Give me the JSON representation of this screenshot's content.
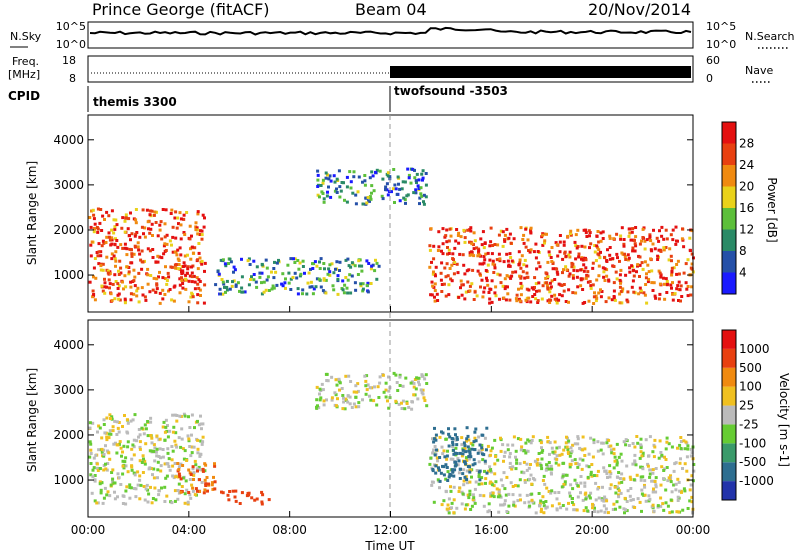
{
  "header": {
    "site": "Prince George (fitACF)",
    "beam": "Beam 04",
    "date": "20/Nov/2014"
  },
  "noise_panel": {
    "left_label": "N.Sky",
    "right_label": "N.Search",
    "yticks_left": [
      "10^5",
      "10^0"
    ],
    "yticks_right": [
      "10^5",
      "10^0"
    ]
  },
  "freq_panel": {
    "left_label_1": "Freq.",
    "left_label_2": "[MHz]",
    "right_label": "Nave",
    "yticks_left": [
      "18",
      "8"
    ],
    "yticks_right": [
      "60",
      "0"
    ]
  },
  "cpid": {
    "label": "CPID",
    "segments": [
      {
        "name": "themis 3300",
        "start_hour": 0,
        "end_hour": 12
      },
      {
        "name": "twofsound -3503",
        "start_hour": 12,
        "end_hour": 24
      }
    ]
  },
  "colors": {
    "power_scale": [
      "#1a1aff",
      "#2550a8",
      "#2a8a66",
      "#5cbf3a",
      "#e9d21a",
      "#f08a10",
      "#e84010",
      "#e41010"
    ],
    "velocity_scale": [
      "#2233aa",
      "#2e6e90",
      "#3a9a6a",
      "#66cc33",
      "#bbbbbb",
      "#f0c020",
      "#f08a10",
      "#e84010",
      "#e41010"
    ]
  },
  "chart_data": [
    {
      "type": "heatmap",
      "title": "Power",
      "xlabel": "",
      "ylabel": "Slant Range [km]",
      "x_range_hours": [
        0,
        24
      ],
      "ylim": [
        180,
        4550
      ],
      "yticks": [
        "4000",
        "3000",
        "2000",
        "1000"
      ],
      "colorbar": {
        "label": "Power [dB]",
        "ticks": [
          "28",
          "24",
          "20",
          "16",
          "12",
          "8",
          "4"
        ],
        "range": [
          0,
          32
        ]
      },
      "regions": [
        {
          "name": "early-band",
          "start_hour": 0.0,
          "end_hour": 4.6,
          "range_start_km": 400,
          "range_end_km": 2500,
          "power_db": 26
        },
        {
          "name": "patch-04",
          "start_hour": 3.6,
          "end_hour": 4.3,
          "range_start_km": 800,
          "range_end_km": 1400,
          "power_db": 28
        },
        {
          "name": "mid-scatter",
          "start_hour": 5.0,
          "end_hour": 11.5,
          "range_start_km": 600,
          "range_end_km": 1400,
          "power_db": 10
        },
        {
          "name": "high-arc",
          "start_hour": 9.0,
          "end_hour": 13.4,
          "range_start_km": 2600,
          "range_end_km": 3400,
          "power_db": 9
        },
        {
          "name": "late-band",
          "start_hour": 13.5,
          "end_hour": 24.0,
          "range_start_km": 400,
          "range_end_km": 2100,
          "power_db": 27
        }
      ]
    },
    {
      "type": "heatmap",
      "title": "Velocity",
      "xlabel": "Time UT",
      "ylabel": "Slant Range [km]",
      "x_range_hours": [
        0,
        24
      ],
      "xticks": [
        "00:00",
        "04:00",
        "08:00",
        "12:00",
        "16:00",
        "20:00",
        "00:00"
      ],
      "ylim": [
        180,
        4550
      ],
      "yticks": [
        "4000",
        "3000",
        "2000",
        "1000"
      ],
      "colorbar": {
        "label": "Velocity [m s-1]",
        "ticks": [
          "1000",
          "500",
          "100",
          "25",
          "-25",
          "-100",
          "-500",
          "-1000"
        ],
        "range": [
          -1000,
          1000
        ]
      },
      "regions": [
        {
          "name": "early-band",
          "start_hour": 0.0,
          "end_hour": 4.6,
          "range_start_km": 500,
          "range_end_km": 2500,
          "velocity_ms": 0
        },
        {
          "name": "patch-04",
          "start_hour": 3.5,
          "end_hour": 5.0,
          "range_start_km": 700,
          "range_end_km": 1400,
          "velocity_ms": -300
        },
        {
          "name": "patch-07",
          "start_hour": 5.2,
          "end_hour": 7.2,
          "range_start_km": 500,
          "range_end_km": 800,
          "velocity_ms": -400
        },
        {
          "name": "high-arc",
          "start_hour": 9.0,
          "end_hour": 13.4,
          "range_start_km": 2600,
          "range_end_km": 3400,
          "velocity_ms": 0
        },
        {
          "name": "late-band",
          "start_hour": 13.5,
          "end_hour": 24.0,
          "range_start_km": 300,
          "range_end_km": 2000,
          "velocity_ms": 0
        },
        {
          "name": "late-positive",
          "start_hour": 13.6,
          "end_hour": 15.8,
          "range_start_km": 1000,
          "range_end_km": 2200,
          "velocity_ms": 200
        }
      ]
    }
  ]
}
